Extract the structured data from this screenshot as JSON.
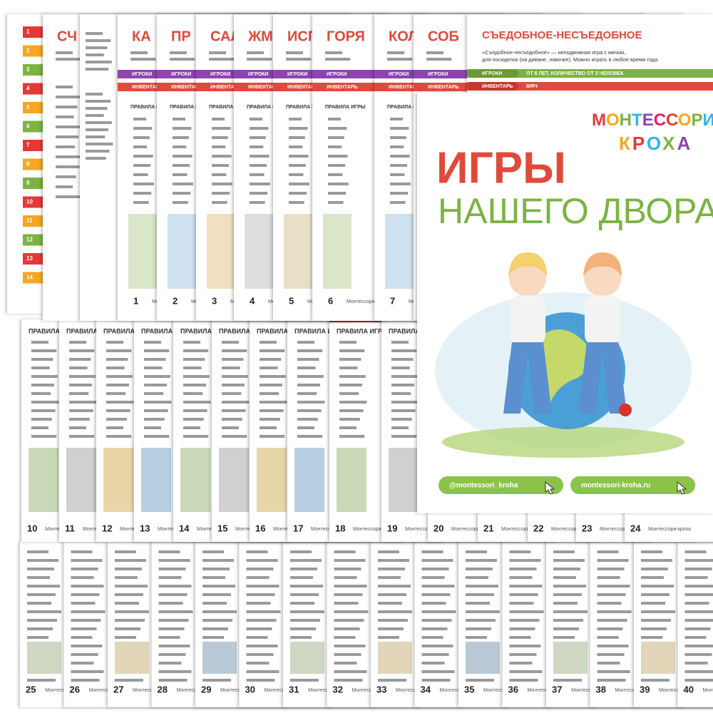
{
  "list_numbers": [
    "1",
    "2",
    "3",
    "4",
    "5",
    "6",
    "7",
    "8",
    "9",
    "10",
    "11",
    "12",
    "13",
    "14"
  ],
  "top_cards": [
    {
      "title": "СЧ"
    },
    {
      "title": "КА",
      "page": "1"
    },
    {
      "title": "ПР",
      "page": "2"
    },
    {
      "title": "САЛ",
      "page": "3"
    },
    {
      "title": "ЖМ",
      "page": "4"
    },
    {
      "title": "ИСП",
      "page": "5"
    },
    {
      "title": "ГОРЯ",
      "page": "6"
    },
    {
      "title": "КОЛ",
      "page": "7"
    },
    {
      "title": "СОБ"
    }
  ],
  "middle_pages": [
    "10",
    "11",
    "12",
    "13",
    "14",
    "15",
    "16",
    "17",
    "18",
    "19",
    "20",
    "21",
    "22",
    "23",
    "24"
  ],
  "bottom_pages": [
    "25",
    "26",
    "27",
    "28",
    "29",
    "30",
    "31",
    "32",
    "33",
    "34",
    "35",
    "36",
    "37",
    "38",
    "39",
    "40"
  ],
  "labels": {
    "players": "ИГРОКИ",
    "equipment": "ИНВЕНТАРЬ",
    "rules": "ПРАВИЛА ИГРЫ",
    "footer": "Монтессори-кроха"
  },
  "front_card": {
    "title": "СЪЕДОБНОЕ-НЕСЪЕДОБНОЕ",
    "description": [
      "«Съедобное-несъедобное» — неподвижная игра с мячом,",
      "для посиделок (на диване, лавочке). Можно играть в любое время года."
    ],
    "players": "ОТ 6 ЛЕТ, КОЛИЧЕСТВО ОТ 3 ЧЕЛОВЕК",
    "equipment": "МЯЧ"
  },
  "cover": {
    "logo_top": "МОНТЕССОРИ",
    "logo_bottom": "КРОХА",
    "title": "ИГРЫ",
    "subtitle": "НАШЕГО ДВОРА",
    "instagram": "@montessori_kroha",
    "site": "montessori-kroha.ru"
  }
}
